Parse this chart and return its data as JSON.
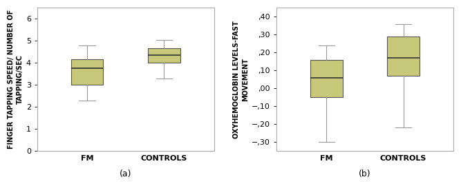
{
  "plot_a": {
    "ylabel": "FINGER TAPPING SPEED/ NUMBER OF\nTAPPING/SEC",
    "xlabel_label": "(a)",
    "categories": [
      "FM",
      "CONTROLS"
    ],
    "box_data": [
      {
        "whislo": 2.3,
        "q1": 3.0,
        "med": 3.75,
        "q3": 4.15,
        "whishi": 4.8
      },
      {
        "whislo": 3.3,
        "q1": 4.0,
        "med": 4.35,
        "q3": 4.65,
        "whishi": 5.05
      }
    ],
    "ylim": [
      0,
      6.5
    ],
    "yticks": [
      0,
      1,
      2,
      3,
      4,
      5,
      6
    ],
    "box_color": "#c8c87a",
    "median_color": "#333333",
    "whisker_color": "#999999",
    "cap_color": "#999999",
    "box_edge_color": "#555555"
  },
  "plot_b": {
    "ylabel": "OXYHEMOGLOBIN LEVELS-FAST\nMOVEMENT",
    "xlabel_label": "(b)",
    "categories": [
      "FM",
      "CONTROLS"
    ],
    "box_data": [
      {
        "whislo": -0.3,
        "q1": -0.05,
        "med": 0.06,
        "q3": 0.16,
        "whishi": 0.24
      },
      {
        "whislo": -0.22,
        "q1": 0.07,
        "med": 0.17,
        "q3": 0.29,
        "whishi": 0.36
      }
    ],
    "ylim": [
      -0.35,
      0.45
    ],
    "yticks": [
      -0.3,
      -0.2,
      -0.1,
      0.0,
      0.1,
      0.2,
      0.3,
      0.4
    ],
    "box_color": "#c8c87a",
    "median_color": "#333333",
    "whisker_color": "#999999",
    "cap_color": "#999999",
    "box_edge_color": "#555555"
  },
  "background_color": "#ffffff",
  "axes_bg_color": "#ffffff",
  "font_family": "DejaVu Sans",
  "font_size": 7,
  "label_fontsize": 7,
  "tick_fontsize": 8,
  "xlabel_fontsize": 9
}
